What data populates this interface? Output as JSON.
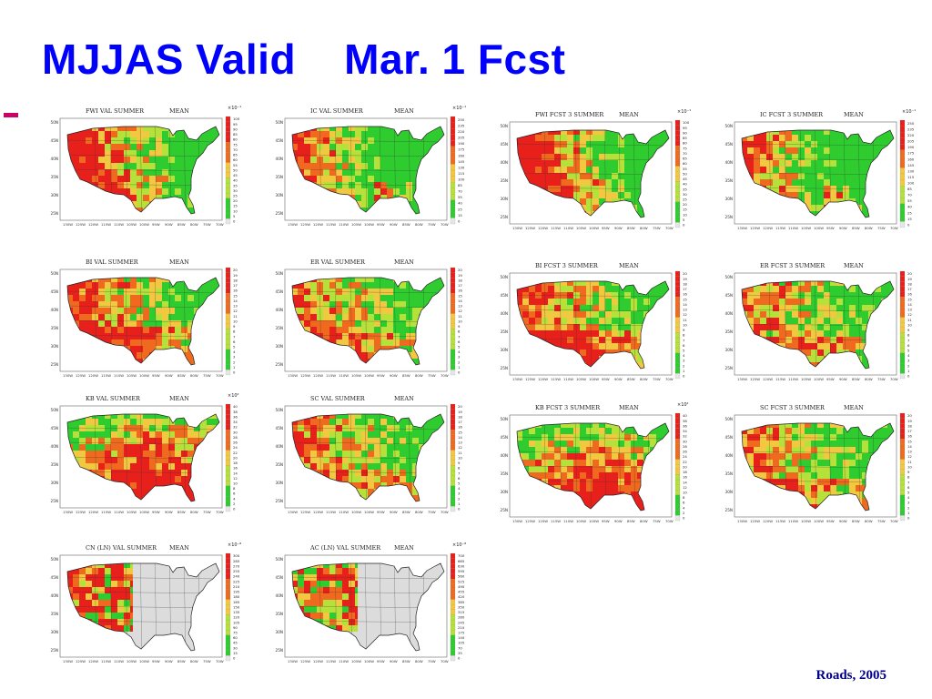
{
  "slide": {
    "title": "MJJAS Valid    Mar. 1 Fcst",
    "credit": "Roads, 2005"
  },
  "common": {
    "lat_labels": [
      "50N",
      "45N",
      "40N",
      "35N",
      "30N",
      "25N"
    ],
    "lon_labels": [
      "130W",
      "125W",
      "120W",
      "115W",
      "110W",
      "105W",
      "100W",
      "95W",
      "90W",
      "85W",
      "80W",
      "75W",
      "70W"
    ],
    "colors": {
      "title": "#0000ff",
      "bullet": "#cc0066",
      "credit": "#00008b",
      "land": "#dcdcdc",
      "high": "#e8201c",
      "mid": "#f2c840",
      "low": "#2ecc2e"
    }
  },
  "panels": [
    {
      "title": "FWI VAL SUMMER",
      "stat": "MEAN",
      "mult": "×10⁻¹",
      "coverage": "conus",
      "pattern": "west-hot",
      "scale": [
        "100",
        "95",
        "90",
        "85",
        "80",
        "75",
        "70",
        "65",
        "60",
        "55",
        "50",
        "45",
        "40",
        "35",
        "30",
        "25",
        "20",
        "15",
        "10",
        "5",
        "0"
      ]
    },
    {
      "title": "IC VAL SUMMER",
      "stat": "MEAN",
      "mult": "×10⁻¹",
      "coverage": "conus",
      "pattern": "west-warm",
      "scale": [
        "250",
        "235",
        "220",
        "205",
        "190",
        "175",
        "160",
        "145",
        "130",
        "115",
        "100",
        "85",
        "70",
        "55",
        "40",
        "25",
        "15",
        "0"
      ]
    },
    {
      "title": "FWI FCST 3 SUMMER",
      "stat": "MEAN",
      "mult": "×10⁻¹",
      "coverage": "conus",
      "pattern": "west-hot",
      "scale": [
        "100",
        "95",
        "90",
        "85",
        "80",
        "75",
        "70",
        "65",
        "60",
        "55",
        "50",
        "45",
        "40",
        "35",
        "30",
        "25",
        "20",
        "15",
        "10",
        "5",
        "0"
      ]
    },
    {
      "title": "IC FCST 3 SUMMER",
      "stat": "MEAN",
      "mult": "×10⁻¹",
      "coverage": "conus",
      "pattern": "west-warm",
      "scale": [
        "250",
        "235",
        "220",
        "205",
        "190",
        "175",
        "160",
        "145",
        "130",
        "115",
        "100",
        "85",
        "70",
        "55",
        "40",
        "25",
        "15",
        "0"
      ]
    },
    {
      "title": "BI VAL SUMMER",
      "stat": "MEAN",
      "mult": "",
      "coverage": "conus",
      "pattern": "mixed-hot",
      "scale": [
        "20",
        "19",
        "18",
        "17",
        "16",
        "15",
        "14",
        "13",
        "12",
        "11",
        "10",
        "9",
        "8",
        "7",
        "6",
        "5",
        "4",
        "3",
        "2",
        "1",
        "0"
      ]
    },
    {
      "title": "ER VAL SUMMER",
      "stat": "MEAN",
      "mult": "",
      "coverage": "conus",
      "pattern": "mixed",
      "scale": [
        "20",
        "19",
        "18",
        "17",
        "16",
        "15",
        "14",
        "13",
        "12",
        "11",
        "10",
        "9",
        "8",
        "7",
        "6",
        "5",
        "4",
        "3",
        "2",
        "1",
        "0"
      ]
    },
    {
      "title": "BI FCST 3 SUMMER",
      "stat": "MEAN",
      "mult": "",
      "coverage": "conus",
      "pattern": "mixed-hot",
      "scale": [
        "20",
        "19",
        "18",
        "17",
        "16",
        "15",
        "14",
        "13",
        "12",
        "11",
        "10",
        "9",
        "8",
        "7",
        "6",
        "5",
        "4",
        "3",
        "2",
        "1",
        "0"
      ]
    },
    {
      "title": "ER FCST 3 SUMMER",
      "stat": "MEAN",
      "mult": "",
      "coverage": "conus",
      "pattern": "mixed",
      "scale": [
        "20",
        "19",
        "18",
        "17",
        "16",
        "15",
        "14",
        "13",
        "12",
        "11",
        "10",
        "9",
        "8",
        "7",
        "6",
        "5",
        "4",
        "3",
        "2",
        "1",
        "0"
      ]
    },
    {
      "title": "KB VAL SUMMER",
      "stat": "MEAN",
      "mult": "×10²",
      "coverage": "conus",
      "pattern": "south-hot",
      "scale": [
        "40",
        "38",
        "36",
        "34",
        "32",
        "30",
        "28",
        "26",
        "24",
        "22",
        "20",
        "18",
        "16",
        "14",
        "12",
        "10",
        "8",
        "6",
        "4",
        "2",
        "0"
      ]
    },
    {
      "title": "SC VAL SUMMER",
      "stat": "MEAN",
      "mult": "",
      "coverage": "conus",
      "pattern": "mixed",
      "scale": [
        "20",
        "19",
        "18",
        "17",
        "16",
        "15",
        "14",
        "13",
        "12",
        "11",
        "10",
        "9",
        "8",
        "7",
        "6",
        "5",
        "4",
        "3",
        "2",
        "1",
        "0"
      ]
    },
    {
      "title": "KB FCST 3 SUMMER",
      "stat": "MEAN",
      "mult": "×10²",
      "coverage": "conus",
      "pattern": "south-hot",
      "scale": [
        "40",
        "38",
        "36",
        "34",
        "32",
        "30",
        "28",
        "26",
        "24",
        "22",
        "20",
        "18",
        "16",
        "14",
        "12",
        "10",
        "8",
        "6",
        "4",
        "2",
        "0"
      ]
    },
    {
      "title": "SC FCST 3 SUMMER",
      "stat": "MEAN",
      "mult": "",
      "coverage": "conus",
      "pattern": "mixed",
      "scale": [
        "20",
        "19",
        "18",
        "17",
        "16",
        "15",
        "14",
        "13",
        "12",
        "11",
        "10",
        "9",
        "8",
        "7",
        "6",
        "5",
        "4",
        "3",
        "2",
        "1",
        "0"
      ]
    },
    {
      "title": "CN (LN) VAL SUMMER",
      "stat": "MEAN",
      "mult": "×10⁻⁸",
      "coverage": "west",
      "pattern": "west-patchy",
      "scale": [
        "300",
        "285",
        "270",
        "255",
        "240",
        "225",
        "210",
        "195",
        "180",
        "165",
        "150",
        "135",
        "120",
        "105",
        "90",
        "75",
        "60",
        "45",
        "30",
        "15",
        "0"
      ]
    },
    {
      "title": "AC (LN) VAL SUMMER",
      "stat": "MEAN",
      "mult": "×10⁻⁸",
      "coverage": "west",
      "pattern": "west-patchy",
      "scale": [
        "700",
        "665",
        "630",
        "595",
        "560",
        "525",
        "490",
        "455",
        "420",
        "385",
        "350",
        "315",
        "280",
        "245",
        "210",
        "175",
        "140",
        "105",
        "70",
        "35",
        "0"
      ]
    }
  ]
}
